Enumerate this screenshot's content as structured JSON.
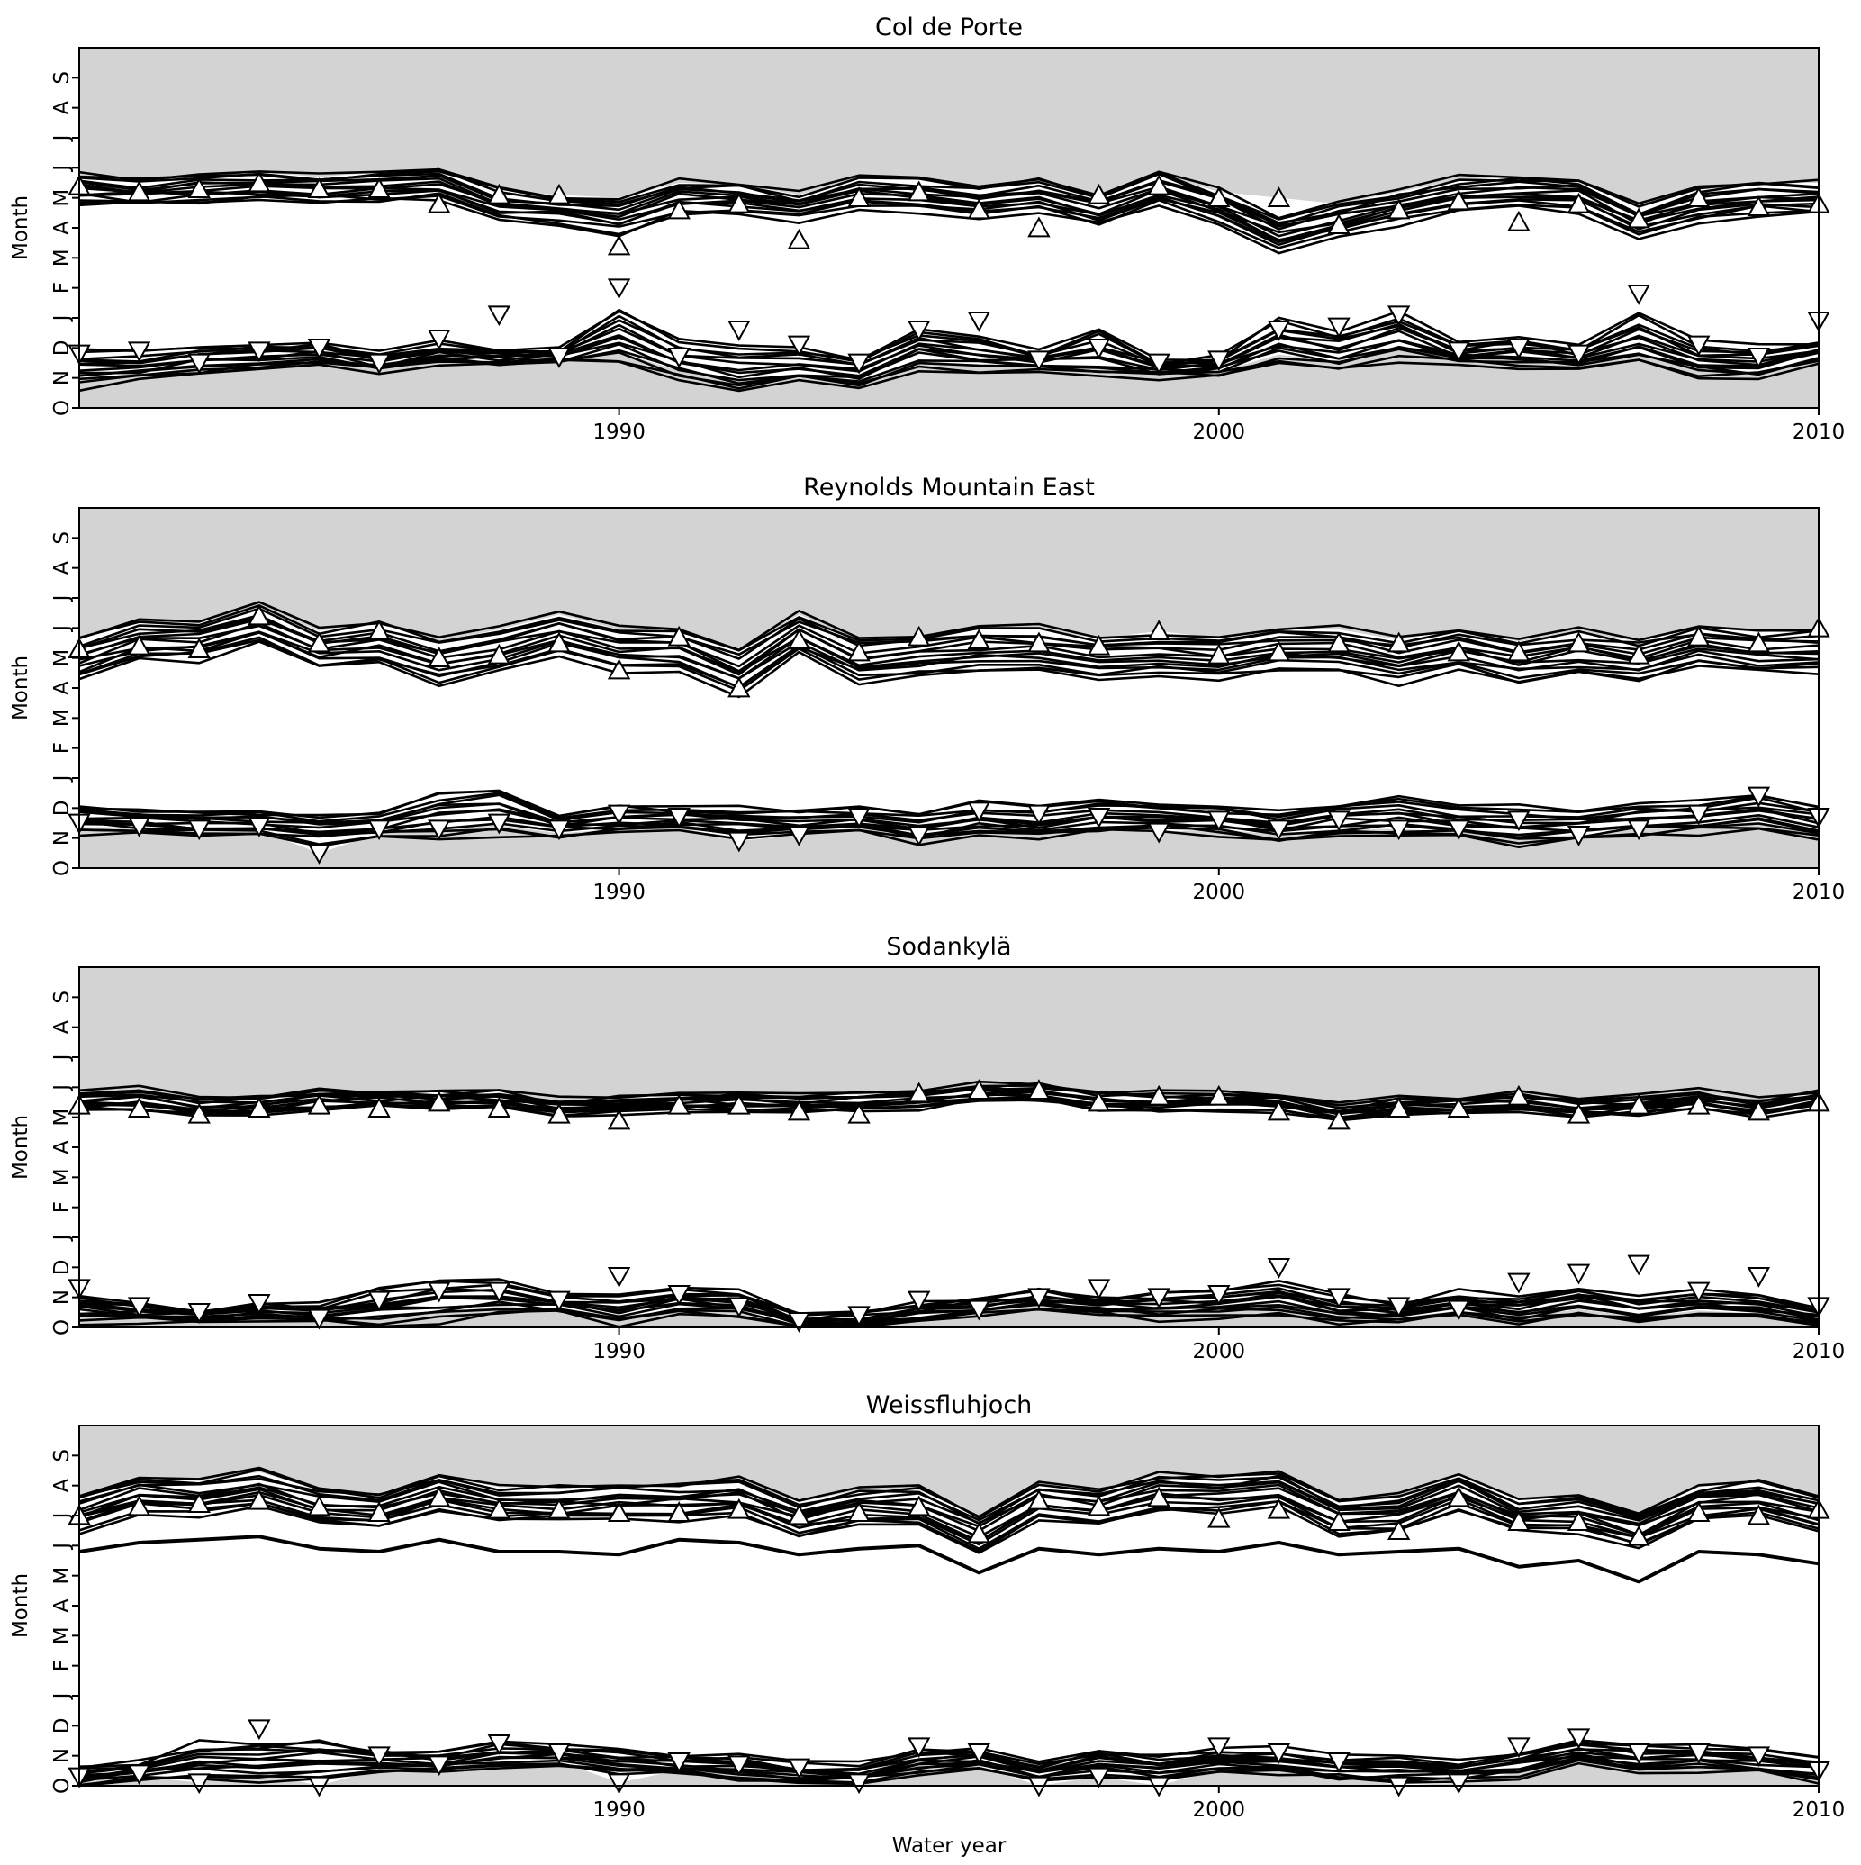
{
  "figure": {
    "xlabel": "Water year",
    "ylabel": "Month",
    "month_ticks": [
      "O",
      "N",
      "D",
      "J",
      "F",
      "M",
      "A",
      "M",
      "J",
      "J",
      "A",
      "S"
    ],
    "xtick_labels": [
      "1990",
      "2000",
      "2010"
    ]
  },
  "chart_data": [
    {
      "type": "line",
      "title": "Col de Porte",
      "xlabel": "",
      "ylabel": "Month",
      "x_range": [
        1981,
        2010
      ],
      "y_range_months_since_oct1": [
        0,
        12
      ],
      "grid": false,
      "shade_color": "#d3d3d3",
      "markers": {
        "onset_symbol": "down-triangle",
        "melt_symbol": "up-triangle",
        "x": [
          1981,
          1982,
          1983,
          1984,
          1985,
          1986,
          1987,
          1988,
          1989,
          1990,
          1991,
          1992,
          1993,
          1994,
          1995,
          1996,
          1997,
          1998,
          1999,
          2000,
          2001,
          2002,
          2003,
          2004,
          2005,
          2006,
          2007,
          2008,
          2009,
          2010
        ],
        "onset": [
          1.8,
          1.9,
          1.5,
          1.9,
          2.0,
          1.5,
          2.3,
          3.1,
          1.7,
          4.0,
          1.7,
          2.6,
          2.1,
          1.5,
          2.6,
          2.9,
          1.6,
          2.0,
          1.5,
          1.6,
          2.6,
          2.7,
          3.1,
          1.9,
          2.0,
          1.8,
          3.8,
          2.1,
          1.7,
          2.9
        ],
        "melt": [
          7.4,
          7.2,
          7.3,
          7.5,
          7.3,
          7.3,
          6.8,
          7.1,
          7.1,
          5.4,
          6.6,
          6.8,
          5.6,
          7.0,
          7.2,
          6.6,
          6.0,
          7.1,
          7.4,
          7.0,
          7.0,
          6.1,
          6.6,
          6.9,
          6.2,
          6.8,
          6.3,
          7.0,
          6.7,
          6.8
        ]
      },
      "ensemble": {
        "description": "Onset and melt dates for the ensemble (months since 1 October)",
        "onset_center": [
          1.3,
          1.4,
          1.6,
          1.7,
          1.8,
          1.5,
          1.8,
          1.7,
          1.7,
          2.4,
          1.6,
          1.3,
          1.4,
          1.2,
          2.0,
          1.8,
          1.6,
          1.8,
          1.3,
          1.4,
          2.2,
          1.9,
          2.4,
          1.8,
          1.9,
          1.7,
          2.3,
          1.6,
          1.5,
          1.9
        ],
        "onset_spread": [
          0.6,
          0.5,
          0.4,
          0.4,
          0.4,
          0.3,
          0.4,
          0.3,
          0.2,
          0.9,
          0.6,
          0.7,
          0.5,
          0.5,
          0.7,
          0.6,
          0.3,
          0.8,
          0.3,
          0.3,
          0.7,
          0.6,
          0.8,
          0.3,
          0.5,
          0.3,
          0.8,
          0.6,
          0.5,
          0.3
        ],
        "melt_center": [
          7.3,
          7.2,
          7.3,
          7.4,
          7.3,
          7.4,
          7.5,
          6.8,
          6.6,
          6.4,
          7.0,
          7.0,
          6.7,
          7.2,
          7.1,
          6.9,
          7.1,
          6.6,
          7.3,
          6.7,
          5.8,
          6.3,
          6.7,
          7.1,
          7.2,
          7.1,
          6.2,
          6.8,
          7.0,
          7.0
        ],
        "melt_spread": [
          0.9,
          0.8,
          0.8,
          0.9,
          0.8,
          0.9,
          1.0,
          0.9,
          0.8,
          1.2,
          1.0,
          0.9,
          0.8,
          0.9,
          1.0,
          0.9,
          1.0,
          0.9,
          1.0,
          1.0,
          1.1,
          1.0,
          1.0,
          1.0,
          1.0,
          1.0,
          0.9,
          1.0,
          1.0,
          1.0
        ]
      }
    },
    {
      "type": "line",
      "title": "Reynolds Mountain East",
      "xlabel": "",
      "ylabel": "Month",
      "x_range": [
        1981,
        2010
      ],
      "y_range_months_since_oct1": [
        0,
        12
      ],
      "grid": false,
      "shade_color": "#d3d3d3",
      "markers": {
        "onset_symbol": "down-triangle",
        "melt_symbol": "up-triangle",
        "x": [
          1981,
          1982,
          1983,
          1984,
          1985,
          1986,
          1987,
          1988,
          1989,
          1990,
          1991,
          1992,
          1993,
          1994,
          1995,
          1996,
          1997,
          1998,
          1999,
          2000,
          2001,
          2002,
          2003,
          2004,
          2005,
          2006,
          2007,
          2008,
          2009,
          2010
        ],
        "onset": [
          1.5,
          1.4,
          1.3,
          1.4,
          0.5,
          1.3,
          1.3,
          1.5,
          1.3,
          1.8,
          1.7,
          0.9,
          1.1,
          1.7,
          1.1,
          1.9,
          1.8,
          1.7,
          1.2,
          1.6,
          1.3,
          1.6,
          1.3,
          1.3,
          1.6,
          1.1,
          1.3,
          1.8,
          2.4,
          1.7
        ],
        "melt": [
          7.3,
          7.4,
          7.3,
          8.4,
          7.5,
          7.9,
          7.0,
          7.1,
          7.5,
          6.6,
          7.7,
          6.0,
          7.6,
          7.2,
          7.7,
          7.6,
          7.5,
          7.4,
          7.9,
          7.1,
          7.2,
          7.5,
          7.5,
          7.2,
          7.2,
          7.5,
          7.1,
          7.7,
          7.5,
          8.0
        ]
      },
      "ensemble": {
        "description": "Onset and melt dates for the ensemble (months since 1 October)",
        "onset_center": [
          1.6,
          1.6,
          1.5,
          1.5,
          1.3,
          1.4,
          1.8,
          1.9,
          1.4,
          1.6,
          1.6,
          1.5,
          1.5,
          1.6,
          1.3,
          1.6,
          1.5,
          1.7,
          1.7,
          1.6,
          1.4,
          1.6,
          1.7,
          1.5,
          1.4,
          1.4,
          1.6,
          1.7,
          1.9,
          1.5
        ],
        "onset_spread": [
          0.4,
          0.4,
          0.4,
          0.4,
          0.5,
          0.4,
          0.8,
          0.8,
          0.4,
          0.5,
          0.4,
          0.5,
          0.4,
          0.4,
          0.5,
          0.6,
          0.5,
          0.5,
          0.5,
          0.5,
          0.5,
          0.5,
          0.6,
          0.5,
          0.6,
          0.5,
          0.5,
          0.5,
          0.6,
          0.6
        ],
        "melt_center": [
          7.0,
          7.6,
          7.6,
          8.1,
          7.3,
          7.5,
          6.9,
          7.3,
          7.8,
          7.3,
          7.3,
          6.5,
          7.8,
          6.9,
          7.1,
          7.3,
          7.3,
          7.0,
          7.1,
          7.0,
          7.3,
          7.3,
          6.9,
          7.3,
          6.9,
          7.2,
          6.9,
          7.4,
          7.2,
          7.2
        ],
        "melt_spread": [
          1.3,
          1.2,
          1.2,
          1.2,
          1.2,
          1.3,
          1.3,
          1.3,
          1.3,
          1.3,
          1.3,
          1.4,
          1.3,
          1.3,
          1.3,
          1.3,
          1.3,
          1.3,
          1.3,
          1.3,
          1.3,
          1.3,
          1.4,
          1.3,
          1.3,
          1.3,
          1.3,
          1.3,
          1.3,
          1.3
        ]
      }
    },
    {
      "type": "line",
      "title": "Sodankylä",
      "xlabel": "",
      "ylabel": "Month",
      "x_range": [
        1981,
        2010
      ],
      "y_range_months_since_oct1": [
        0,
        12
      ],
      "grid": false,
      "shade_color": "#d3d3d3",
      "markers": {
        "onset_symbol": "down-triangle",
        "melt_symbol": "up-triangle",
        "x": [
          1981,
          1982,
          1983,
          1984,
          1985,
          1986,
          1987,
          1988,
          1989,
          1990,
          1991,
          1992,
          1993,
          1994,
          1995,
          1996,
          1997,
          1998,
          1999,
          2000,
          2001,
          2002,
          2003,
          2004,
          2005,
          2006,
          2007,
          2008,
          2009,
          2010
        ],
        "onset": [
          1.3,
          0.7,
          0.5,
          0.8,
          0.3,
          0.9,
          1.2,
          1.2,
          0.9,
          1.7,
          1.1,
          0.7,
          0.2,
          0.4,
          0.9,
          0.6,
          1.0,
          1.3,
          1.0,
          1.1,
          2.0,
          1.0,
          0.7,
          0.6,
          1.5,
          1.8,
          2.1,
          1.2,
          1.7,
          0.7
        ],
        "melt": [
          7.4,
          7.3,
          7.1,
          7.3,
          7.4,
          7.3,
          7.5,
          7.3,
          7.1,
          6.9,
          7.4,
          7.4,
          7.2,
          7.1,
          7.8,
          7.9,
          7.9,
          7.5,
          7.7,
          7.7,
          7.2,
          6.9,
          7.3,
          7.3,
          7.7,
          7.1,
          7.4,
          7.4,
          7.2,
          7.5
        ]
      },
      "ensemble": {
        "description": "Onset and melt dates for the ensemble (months since 1 October)",
        "onset_center": [
          0.6,
          0.5,
          0.4,
          0.5,
          0.5,
          0.7,
          0.9,
          1.0,
          0.8,
          0.6,
          0.9,
          0.8,
          0.2,
          0.3,
          0.5,
          0.7,
          0.9,
          0.7,
          0.7,
          0.8,
          1.0,
          0.6,
          0.5,
          0.8,
          0.6,
          0.9,
          0.6,
          0.8,
          0.7,
          0.4
        ],
        "onset_spread": [
          0.4,
          0.3,
          0.2,
          0.3,
          0.3,
          0.6,
          0.7,
          0.5,
          0.3,
          0.5,
          0.4,
          0.4,
          0.2,
          0.2,
          0.3,
          0.3,
          0.3,
          0.3,
          0.4,
          0.4,
          0.6,
          0.4,
          0.3,
          0.4,
          0.4,
          0.5,
          0.4,
          0.4,
          0.4,
          0.3
        ],
        "melt_center": [
          7.5,
          7.6,
          7.3,
          7.4,
          7.6,
          7.6,
          7.6,
          7.6,
          7.3,
          7.4,
          7.5,
          7.5,
          7.5,
          7.5,
          7.6,
          7.8,
          7.8,
          7.6,
          7.5,
          7.5,
          7.5,
          7.1,
          7.4,
          7.4,
          7.5,
          7.3,
          7.4,
          7.6,
          7.3,
          7.6
        ],
        "melt_spread": [
          0.6,
          0.6,
          0.5,
          0.5,
          0.6,
          0.5,
          0.5,
          0.5,
          0.5,
          0.5,
          0.5,
          0.5,
          0.5,
          0.5,
          0.5,
          0.5,
          0.5,
          0.5,
          0.5,
          0.5,
          0.5,
          0.5,
          0.5,
          0.5,
          0.5,
          0.5,
          0.5,
          0.5,
          0.5,
          0.5
        ]
      }
    },
    {
      "type": "line",
      "title": "Weissfluhjoch",
      "xlabel": "Water year",
      "ylabel": "Month",
      "x_range": [
        1981,
        2010
      ],
      "y_range_months_since_oct1": [
        0,
        12
      ],
      "grid": false,
      "shade_color": "#d3d3d3",
      "markers": {
        "onset_symbol": "down-triangle",
        "melt_symbol": "up-triangle",
        "x": [
          1981,
          1982,
          1983,
          1984,
          1985,
          1986,
          1987,
          1988,
          1989,
          1990,
          1991,
          1992,
          1993,
          1994,
          1995,
          1996,
          1997,
          1998,
          1999,
          2000,
          2001,
          2002,
          2003,
          2004,
          2005,
          2006,
          2007,
          2008,
          2009,
          2010
        ],
        "onset": [
          0.3,
          0.4,
          0.1,
          1.9,
          0.0,
          1.0,
          0.7,
          1.4,
          1.1,
          0.1,
          0.8,
          0.7,
          0.6,
          0.1,
          1.3,
          1.1,
          0.0,
          0.3,
          0.0,
          1.3,
          1.1,
          0.8,
          0.0,
          0.1,
          1.3,
          1.6,
          1.1,
          1.1,
          1.0,
          0.5
        ],
        "melt": [
          9.0,
          9.3,
          9.4,
          9.5,
          9.3,
          9.1,
          9.6,
          9.2,
          9.2,
          9.1,
          9.1,
          9.2,
          9.0,
          9.1,
          9.3,
          8.4,
          9.5,
          9.3,
          9.6,
          8.9,
          9.2,
          8.8,
          8.5,
          9.6,
          8.8,
          8.8,
          8.3,
          9.1,
          9.0,
          9.2
        ]
      },
      "ensemble": {
        "description": "Onset and melt dates for the ensemble (months since 1 October)",
        "onset_center": [
          0.3,
          0.5,
          0.8,
          0.8,
          0.9,
          0.8,
          0.8,
          1.0,
          1.0,
          0.8,
          0.7,
          0.6,
          0.4,
          0.4,
          0.8,
          0.9,
          0.4,
          0.8,
          0.6,
          0.8,
          0.8,
          0.6,
          0.6,
          0.5,
          0.7,
          1.1,
          0.9,
          0.9,
          0.8,
          0.6
        ],
        "onset_spread": [
          0.3,
          0.3,
          0.6,
          0.6,
          0.6,
          0.4,
          0.3,
          0.4,
          0.3,
          0.4,
          0.3,
          0.4,
          0.3,
          0.3,
          0.4,
          0.4,
          0.3,
          0.4,
          0.4,
          0.4,
          0.4,
          0.4,
          0.4,
          0.3,
          0.4,
          0.4,
          0.4,
          0.4,
          0.4,
          0.4
        ],
        "melt_center": [
          9.1,
          9.7,
          9.6,
          9.9,
          9.3,
          9.2,
          9.8,
          9.4,
          9.4,
          9.5,
          9.5,
          9.6,
          8.9,
          9.3,
          9.3,
          8.4,
          9.5,
          9.3,
          9.8,
          9.7,
          9.9,
          9.0,
          9.1,
          9.8,
          9.0,
          9.1,
          8.5,
          9.4,
          9.6,
          9.1
        ],
        "melt_spread": [
          1.1,
          1.1,
          1.1,
          1.1,
          1.1,
          1.1,
          1.1,
          1.1,
          1.1,
          1.1,
          1.1,
          1.1,
          1.1,
          1.1,
          1.1,
          1.1,
          1.1,
          1.1,
          1.1,
          1.1,
          1.1,
          1.1,
          1.1,
          1.1,
          1.1,
          1.1,
          1.1,
          1.1,
          1.1,
          1.1
        ],
        "lowest_melt_member": [
          7.8,
          8.1,
          8.2,
          8.3,
          7.9,
          7.8,
          8.2,
          7.8,
          7.8,
          7.7,
          8.2,
          8.1,
          7.7,
          7.9,
          8.0,
          7.1,
          7.9,
          7.7,
          7.9,
          7.8,
          8.1,
          7.7,
          7.8,
          7.9,
          7.3,
          7.5,
          6.8,
          7.8,
          7.7,
          7.4
        ]
      }
    }
  ]
}
